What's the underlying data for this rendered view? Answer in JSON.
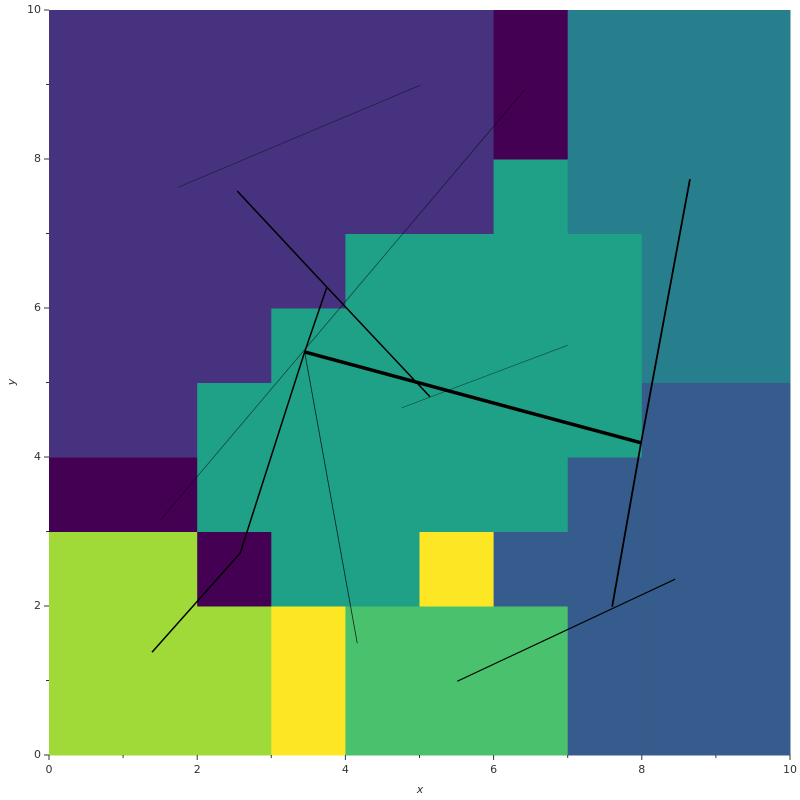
{
  "chart_data": {
    "type": "heatmap",
    "x_label": "x",
    "y_label": "y",
    "xlim": [
      0,
      10
    ],
    "ylim": [
      0,
      10
    ],
    "xticks": [
      0,
      2,
      4,
      6,
      8,
      10
    ],
    "yticks": [
      0,
      2,
      4,
      6,
      8,
      10
    ],
    "xminor": [
      1,
      3,
      5,
      7,
      9
    ],
    "yminor": [
      1,
      3,
      5,
      7,
      9
    ],
    "zlim": [
      0,
      7
    ],
    "colors": [
      "#440154",
      "#46327e",
      "#365c8d",
      "#277f8e",
      "#1fa187",
      "#4ac16d",
      "#a0da39",
      "#fde725"
    ],
    "z": [
      [
        6,
        6,
        6,
        7,
        5,
        5,
        5,
        2,
        2,
        2
      ],
      [
        6,
        6,
        6,
        7,
        5,
        5,
        5,
        2,
        2,
        2
      ],
      [
        6,
        6,
        0,
        4,
        4,
        7,
        2,
        2,
        2,
        2
      ],
      [
        0,
        0,
        4,
        4,
        4,
        4,
        4,
        2,
        2,
        2
      ],
      [
        1,
        1,
        4,
        4,
        4,
        4,
        4,
        4,
        2,
        2
      ],
      [
        1,
        1,
        1,
        4,
        4,
        4,
        4,
        4,
        3,
        3
      ],
      [
        1,
        1,
        1,
        1,
        4,
        4,
        4,
        4,
        3,
        3
      ],
      [
        1,
        1,
        1,
        1,
        1,
        1,
        4,
        3,
        3,
        3
      ],
      [
        1,
        1,
        1,
        1,
        1,
        1,
        0,
        3,
        3,
        3
      ],
      [
        1,
        1,
        1,
        1,
        1,
        1,
        0,
        3,
        3,
        3
      ]
    ],
    "lines": [
      {
        "x": [
          2.54,
          3.75,
          5.14
        ],
        "y": [
          7.57,
          6.28,
          4.81
        ],
        "width": 1.5,
        "alpha": 1
      },
      {
        "x": [
          3.75,
          3.45,
          2.58,
          1.39
        ],
        "y": [
          6.28,
          5.41,
          2.71,
          1.38
        ],
        "width": 1.5,
        "alpha": 1
      },
      {
        "x": [
          3.45,
          7.99
        ],
        "y": [
          5.41,
          4.19
        ],
        "width": 3.5,
        "alpha": 1
      },
      {
        "x": [
          8.65,
          7.99,
          7.6
        ],
        "y": [
          7.73,
          4.19,
          1.99
        ],
        "width": 1.8,
        "alpha": 1
      },
      {
        "x": [
          5.51,
          8.45
        ],
        "y": [
          0.99,
          2.36
        ],
        "width": 1.2,
        "alpha": 1
      },
      {
        "x": [
          3.45,
          4.16
        ],
        "y": [
          5.41,
          1.5
        ],
        "width": 0.8,
        "alpha": 0.8
      },
      {
        "x": [
          1.5,
          6.42
        ],
        "y": [
          3.15,
          8.93
        ],
        "width": 0.7,
        "alpha": 0.6
      },
      {
        "x": [
          1.74,
          5.01
        ],
        "y": [
          7.62,
          8.99
        ],
        "width": 0.7,
        "alpha": 0.5
      },
      {
        "x": [
          4.76,
          7.0
        ],
        "y": [
          4.66,
          5.5
        ],
        "width": 0.7,
        "alpha": 0.5
      }
    ]
  }
}
